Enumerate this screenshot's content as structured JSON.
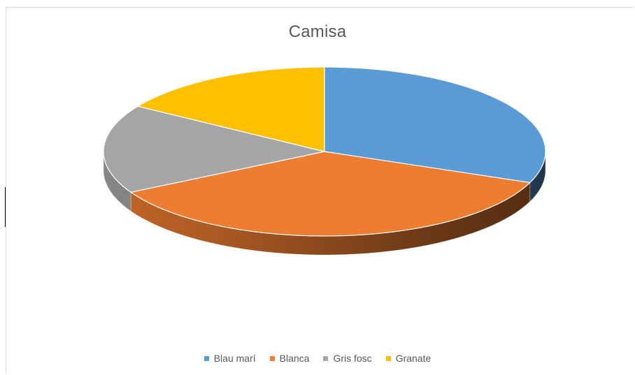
{
  "chart_data": {
    "type": "pie",
    "style": "3d",
    "title": "Camisa",
    "categories": [
      "Blau marí",
      "Blanca",
      "Gris fosc",
      "Granate"
    ],
    "values": [
      31,
      36,
      17,
      16
    ],
    "colors": [
      "#5b9bd5",
      "#ed7d31",
      "#a5a5a5",
      "#ffc000"
    ],
    "legend_position": "bottom"
  }
}
